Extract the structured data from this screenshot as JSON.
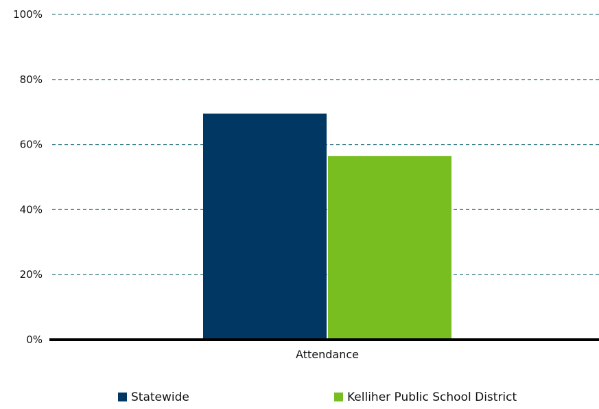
{
  "chart_data": {
    "type": "bar",
    "title": "",
    "xlabel": "",
    "ylabel": "",
    "categories": [
      "Attendance"
    ],
    "series": [
      {
        "name": "Statewide",
        "values": [
          69.5
        ],
        "color": "#003763"
      },
      {
        "name": "Kelliher Public School District",
        "values": [
          56.5
        ],
        "color": "#78be20"
      }
    ],
    "ylim": [
      0,
      100
    ],
    "yticks": [
      0,
      20,
      40,
      60,
      80,
      100
    ],
    "ytick_labels": [
      "0%",
      "20%",
      "40%",
      "60%",
      "80%",
      "100%"
    ],
    "grid": true,
    "grid_style": "dashed",
    "grid_color": "#3a7d88",
    "axis_color": "#000000",
    "legend_position": "bottom"
  }
}
